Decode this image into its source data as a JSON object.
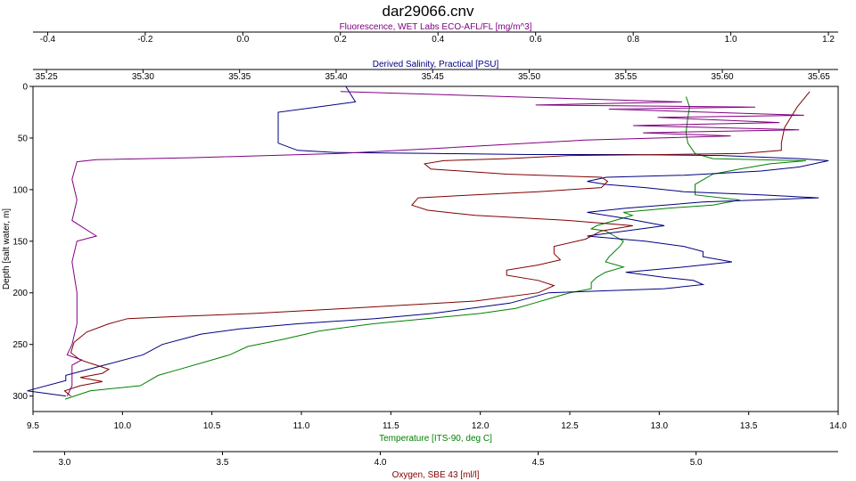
{
  "chart_data": {
    "type": "line",
    "title": "dar29066.cnv",
    "y_axis": {
      "label": "Depth [salt water, m]",
      "ylim": [
        0,
        315
      ],
      "ticks": [
        0,
        50,
        100,
        150,
        200,
        250,
        300
      ],
      "inverted": true
    },
    "x_axes": [
      {
        "id": "fluorescence",
        "label": "Fluorescence, WET Labs ECO-AFL/FL [mg/m^3]",
        "position": "top",
        "range": [
          -0.43,
          1.22
        ],
        "ticks": [
          -0.4,
          -0.2,
          0.0,
          0.2,
          0.4,
          0.6,
          0.8,
          1.0,
          1.2
        ],
        "tick_labels": [
          "-0.4",
          "-0.2",
          "0.0",
          "0.2",
          "0.4",
          "0.6",
          "0.8",
          "1.0",
          "1.2"
        ],
        "color": "#800080"
      },
      {
        "id": "salinity",
        "label": "Derived Salinity, Practical [PSU]",
        "position": "top",
        "range": [
          35.243,
          35.66
        ],
        "ticks": [
          35.25,
          35.3,
          35.35,
          35.4,
          35.45,
          35.5,
          35.55,
          35.6,
          35.65
        ],
        "tick_labels": [
          "35.25",
          "35.30",
          "35.35",
          "35.40",
          "35.45",
          "35.50",
          "35.55",
          "35.60",
          "35.65"
        ],
        "color": "#000080"
      },
      {
        "id": "temperature",
        "label": "Temperature [ITS-90, deg C]",
        "position": "bottom",
        "range": [
          9.5,
          14.0
        ],
        "ticks": [
          9.5,
          10.0,
          10.5,
          11.0,
          11.5,
          12.0,
          12.5,
          13.0,
          13.5,
          14.0
        ],
        "tick_labels": [
          "9.5",
          "10.0",
          "10.5",
          "11.0",
          "11.5",
          "12.0",
          "12.5",
          "13.0",
          "13.5",
          "14.0"
        ],
        "color": "#008000"
      },
      {
        "id": "oxygen",
        "label": "Oxygen, SBE 43 [ml/l]",
        "position": "bottom",
        "range": [
          2.9,
          5.45
        ],
        "ticks": [
          3.0,
          3.5,
          4.0,
          4.5,
          5.0
        ],
        "tick_labels": [
          "3.0",
          "3.5",
          "4.0",
          "4.5",
          "5.0"
        ],
        "color": "#800000"
      }
    ],
    "series": [
      {
        "axis": "temperature",
        "color": "#008000",
        "points": [
          [
            13.15,
            10
          ],
          [
            13.17,
            20
          ],
          [
            13.16,
            30
          ],
          [
            13.15,
            45
          ],
          [
            13.16,
            55
          ],
          [
            13.2,
            65
          ],
          [
            13.3,
            70
          ],
          [
            13.82,
            72
          ],
          [
            13.62,
            75
          ],
          [
            13.45,
            80
          ],
          [
            13.3,
            85
          ],
          [
            13.2,
            95
          ],
          [
            13.2,
            105
          ],
          [
            13.45,
            110
          ],
          [
            13.3,
            115
          ],
          [
            13.05,
            118
          ],
          [
            12.8,
            122
          ],
          [
            12.85,
            125
          ],
          [
            12.75,
            130
          ],
          [
            12.65,
            135
          ],
          [
            12.62,
            138
          ],
          [
            12.7,
            140
          ],
          [
            12.75,
            145
          ],
          [
            12.8,
            150
          ],
          [
            12.78,
            155
          ],
          [
            12.75,
            160
          ],
          [
            12.72,
            165
          ],
          [
            12.7,
            170
          ],
          [
            12.8,
            175
          ],
          [
            12.7,
            180
          ],
          [
            12.65,
            185
          ],
          [
            12.62,
            190
          ],
          [
            12.62,
            196
          ],
          [
            12.5,
            200
          ],
          [
            12.4,
            205
          ],
          [
            12.3,
            210
          ],
          [
            12.2,
            215
          ],
          [
            12.0,
            220
          ],
          [
            11.7,
            225
          ],
          [
            11.4,
            230
          ],
          [
            11.1,
            237
          ],
          [
            10.9,
            245
          ],
          [
            10.7,
            252
          ],
          [
            10.6,
            260
          ],
          [
            10.5,
            265
          ],
          [
            10.3,
            275
          ],
          [
            10.2,
            280
          ],
          [
            10.1,
            290
          ],
          [
            9.82,
            295
          ],
          [
            9.68,
            303
          ]
        ]
      },
      {
        "axis": "salinity",
        "color": "#000080",
        "points": [
          [
            35.405,
            0
          ],
          [
            35.41,
            15
          ],
          [
            35.39,
            20
          ],
          [
            35.37,
            25
          ],
          [
            35.37,
            40
          ],
          [
            35.37,
            55
          ],
          [
            35.38,
            62
          ],
          [
            35.4,
            64
          ],
          [
            35.45,
            65
          ],
          [
            35.5,
            66
          ],
          [
            35.55,
            66
          ],
          [
            35.6,
            67
          ],
          [
            35.64,
            70
          ],
          [
            35.655,
            72
          ],
          [
            35.64,
            78
          ],
          [
            35.62,
            82
          ],
          [
            35.58,
            86
          ],
          [
            35.54,
            88
          ],
          [
            35.53,
            92
          ],
          [
            35.54,
            95
          ],
          [
            35.56,
            98
          ],
          [
            35.58,
            102
          ],
          [
            35.62,
            105
          ],
          [
            35.65,
            108
          ],
          [
            35.59,
            112
          ],
          [
            35.55,
            118
          ],
          [
            35.53,
            122
          ],
          [
            35.55,
            128
          ],
          [
            35.57,
            135
          ],
          [
            35.55,
            140
          ],
          [
            35.53,
            145
          ],
          [
            35.56,
            150
          ],
          [
            35.58,
            155
          ],
          [
            35.59,
            160
          ],
          [
            35.59,
            165
          ],
          [
            35.605,
            170
          ],
          [
            35.58,
            175
          ],
          [
            35.55,
            180
          ],
          [
            35.57,
            185
          ],
          [
            35.585,
            188
          ],
          [
            35.59,
            192
          ],
          [
            35.57,
            196
          ],
          [
            35.51,
            200
          ],
          [
            35.49,
            210
          ],
          [
            35.45,
            220
          ],
          [
            35.42,
            225
          ],
          [
            35.38,
            230
          ],
          [
            35.35,
            235
          ],
          [
            35.33,
            240
          ],
          [
            35.31,
            250
          ],
          [
            35.3,
            260
          ],
          [
            35.28,
            270
          ],
          [
            35.26,
            280
          ],
          [
            35.26,
            285
          ],
          [
            35.24,
            295
          ],
          [
            35.26,
            300
          ]
        ]
      },
      {
        "axis": "oxygen",
        "color": "#800000",
        "points": [
          [
            5.36,
            5
          ],
          [
            5.32,
            20
          ],
          [
            5.3,
            30
          ],
          [
            5.28,
            40
          ],
          [
            5.27,
            55
          ],
          [
            5.27,
            62
          ],
          [
            5.15,
            65
          ],
          [
            4.9,
            66
          ],
          [
            4.6,
            67
          ],
          [
            4.4,
            70
          ],
          [
            4.2,
            72
          ],
          [
            4.14,
            75
          ],
          [
            4.16,
            80
          ],
          [
            4.4,
            85
          ],
          [
            4.7,
            88
          ],
          [
            4.72,
            92
          ],
          [
            4.7,
            98
          ],
          [
            4.5,
            102
          ],
          [
            4.3,
            105
          ],
          [
            4.12,
            108
          ],
          [
            4.1,
            115
          ],
          [
            4.15,
            120
          ],
          [
            4.3,
            125
          ],
          [
            4.6,
            130
          ],
          [
            4.8,
            135
          ],
          [
            4.7,
            140
          ],
          [
            4.65,
            148
          ],
          [
            4.55,
            155
          ],
          [
            4.55,
            162
          ],
          [
            4.57,
            168
          ],
          [
            4.5,
            173
          ],
          [
            4.4,
            178
          ],
          [
            4.4,
            183
          ],
          [
            4.5,
            188
          ],
          [
            4.55,
            193
          ],
          [
            4.5,
            200
          ],
          [
            4.3,
            208
          ],
          [
            3.9,
            215
          ],
          [
            3.6,
            220
          ],
          [
            3.35,
            223
          ],
          [
            3.2,
            225
          ],
          [
            3.14,
            230
          ],
          [
            3.07,
            238
          ],
          [
            3.03,
            248
          ],
          [
            3.02,
            258
          ],
          [
            3.05,
            265
          ],
          [
            3.1,
            270
          ],
          [
            3.14,
            274
          ],
          [
            3.12,
            278
          ],
          [
            3.05,
            282
          ],
          [
            3.12,
            286
          ],
          [
            3.05,
            290
          ],
          [
            3.0,
            295
          ],
          [
            3.02,
            300
          ]
        ]
      },
      {
        "axis": "fluorescence",
        "color": "#800080",
        "points": [
          [
            0.2,
            5
          ],
          [
            0.55,
            10
          ],
          [
            0.9,
            15
          ],
          [
            0.6,
            18
          ],
          [
            1.05,
            20
          ],
          [
            0.75,
            22
          ],
          [
            1.15,
            28
          ],
          [
            0.85,
            30
          ],
          [
            1.1,
            35
          ],
          [
            0.8,
            38
          ],
          [
            1.14,
            42
          ],
          [
            0.82,
            45
          ],
          [
            1.0,
            48
          ],
          [
            0.7,
            52
          ],
          [
            0.4,
            60
          ],
          [
            0.2,
            65
          ],
          [
            -0.1,
            69
          ],
          [
            -0.3,
            71
          ],
          [
            -0.34,
            73
          ],
          [
            -0.35,
            90
          ],
          [
            -0.34,
            110
          ],
          [
            -0.35,
            130
          ],
          [
            -0.3,
            145
          ],
          [
            -0.34,
            150
          ],
          [
            -0.35,
            170
          ],
          [
            -0.34,
            200
          ],
          [
            -0.34,
            230
          ],
          [
            -0.35,
            250
          ],
          [
            -0.36,
            260
          ],
          [
            -0.33,
            265
          ],
          [
            -0.35,
            270
          ],
          [
            -0.35,
            290
          ],
          [
            -0.36,
            300
          ]
        ]
      }
    ]
  }
}
